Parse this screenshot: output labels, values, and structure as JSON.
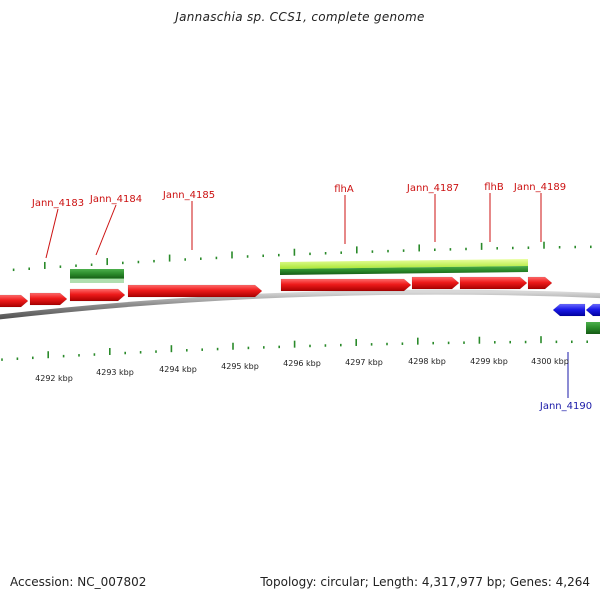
{
  "title": "Jannaschia sp. CCS1, complete genome",
  "footer": {
    "accession": "Accession: NC_007802",
    "summary": "Topology: circular; Length: 4,317,977 bp; Genes: 4,264"
  },
  "colors": {
    "forward_gene": "#e81414",
    "reverse_gene": "#1a14e0",
    "cds_bar": "#2e8b2e",
    "highlight_bar": "#b8f040",
    "tick": "#2a8a2a",
    "backbone": "#8a8a8a",
    "label_forward": "#cc1111",
    "label_reverse": "#1a1aa8"
  },
  "ruler_labels": [
    "4292 kbp",
    "4293 kbp",
    "4294 kbp",
    "4295 kbp",
    "4296 kbp",
    "4297 kbp",
    "4298 kbp",
    "4299 kbp",
    "4300 kbp"
  ],
  "gene_labels": [
    {
      "id": "jann-4183",
      "text": "Jann_4183",
      "strand": "forward"
    },
    {
      "id": "jann-4184",
      "text": "Jann_4184",
      "strand": "forward"
    },
    {
      "id": "jann-4185",
      "text": "Jann_4185",
      "strand": "forward"
    },
    {
      "id": "flha",
      "text": "flhA",
      "strand": "forward"
    },
    {
      "id": "jann-4187",
      "text": "Jann_4187",
      "strand": "forward"
    },
    {
      "id": "flhb",
      "text": "flhB",
      "strand": "forward"
    },
    {
      "id": "jann-4189",
      "text": "Jann_4189",
      "strand": "forward"
    },
    {
      "id": "jann-4190",
      "text": "Jann_4190",
      "strand": "reverse"
    }
  ]
}
